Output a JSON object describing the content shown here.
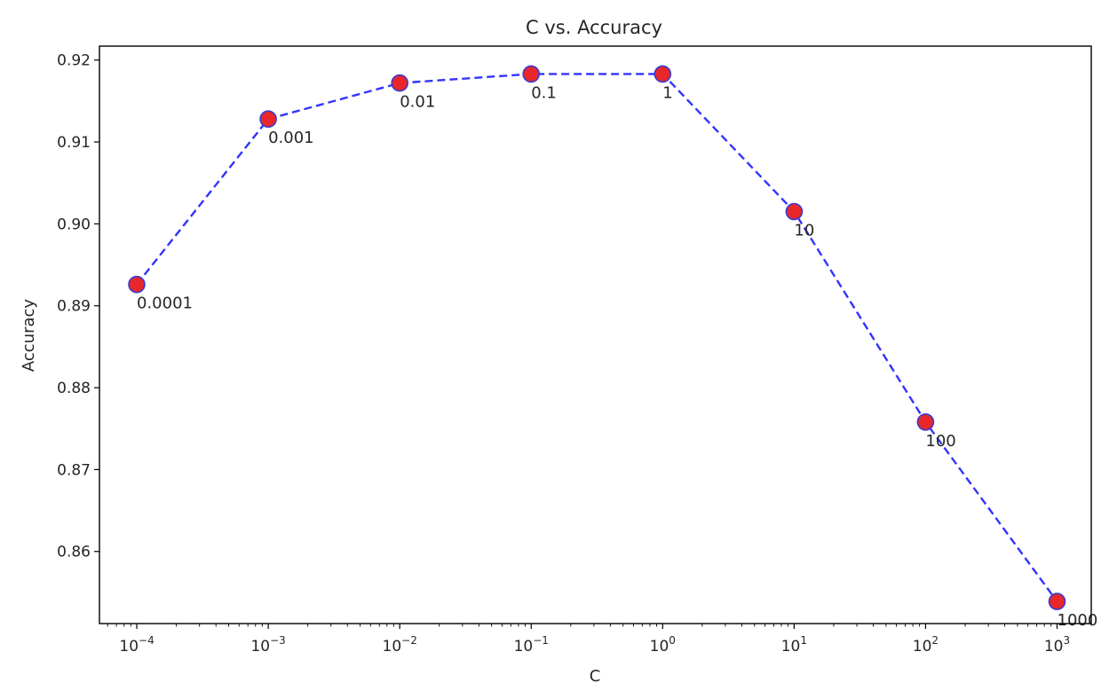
{
  "chart_data": {
    "type": "line",
    "title": "C vs. Accuracy",
    "xlabel": "C",
    "ylabel": "Accuracy",
    "xscale": "log",
    "x": [
      0.0001,
      0.001,
      0.01,
      0.1,
      1,
      10,
      100,
      1000
    ],
    "y": [
      0.8926,
      0.9128,
      0.9172,
      0.9183,
      0.9183,
      0.9015,
      0.8758,
      0.8539
    ],
    "point_labels": [
      "0.0001",
      "0.001",
      "0.01",
      "0.1",
      "1",
      "10",
      "100",
      "1000"
    ],
    "xticks": [
      {
        "value": 0.0001,
        "base": "10",
        "exp": "−4"
      },
      {
        "value": 0.001,
        "base": "10",
        "exp": "−3"
      },
      {
        "value": 0.01,
        "base": "10",
        "exp": "−2"
      },
      {
        "value": 0.1,
        "base": "10",
        "exp": "−1"
      },
      {
        "value": 1,
        "base": "10",
        "exp": "0"
      },
      {
        "value": 10,
        "base": "10",
        "exp": "1"
      },
      {
        "value": 100,
        "base": "10",
        "exp": "2"
      },
      {
        "value": 1000,
        "base": "10",
        "exp": "3"
      }
    ],
    "yticks": [
      {
        "value": 0.86,
        "label": "0.86"
      },
      {
        "value": 0.87,
        "label": "0.87"
      },
      {
        "value": 0.88,
        "label": "0.88"
      },
      {
        "value": 0.89,
        "label": "0.89"
      },
      {
        "value": 0.9,
        "label": "0.90"
      },
      {
        "value": 0.91,
        "label": "0.91"
      },
      {
        "value": 0.92,
        "label": "0.92"
      }
    ],
    "xlim": [
      5.2e-05,
      1820
    ],
    "ylim": [
      0.8512,
      0.9217
    ],
    "grid": false,
    "line_color": "#3333ff",
    "line_style": "dashed",
    "marker_face_color": "#e8272a",
    "marker_edge_color": "#3a3ad0"
  }
}
